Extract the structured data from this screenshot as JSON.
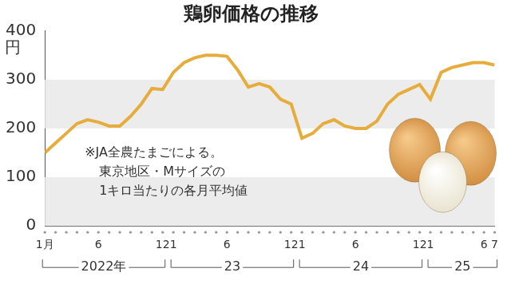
{
  "chart_data": {
    "type": "line",
    "title": "鶏卵価格の推移",
    "y_label": "円",
    "categories": [
      "1月",
      null,
      null,
      null,
      null,
      "6",
      null,
      null,
      null,
      null,
      null,
      "12",
      "1",
      null,
      null,
      null,
      null,
      "6",
      null,
      null,
      null,
      null,
      null,
      "12",
      "1",
      null,
      null,
      null,
      null,
      "6",
      null,
      null,
      null,
      null,
      null,
      "12",
      "1",
      null,
      null,
      null,
      null,
      "6",
      "7"
    ],
    "values": [
      150,
      170,
      190,
      210,
      218,
      213,
      205,
      205,
      225,
      250,
      282,
      280,
      315,
      335,
      345,
      350,
      350,
      348,
      320,
      285,
      292,
      285,
      260,
      250,
      180,
      190,
      210,
      218,
      205,
      200,
      200,
      215,
      250,
      270,
      280,
      290,
      260,
      315,
      325,
      330,
      335,
      335,
      330
    ],
    "color": "#e6ac3c",
    "ylim": [
      0,
      400
    ],
    "yticks": [
      0,
      100,
      200,
      300,
      400
    ],
    "grid": true,
    "annotations": [
      "※JA全農たまごによる。",
      "東京地区・Mサイズの",
      "1キロ当たりの各月平均値"
    ],
    "x_groups": [
      {
        "label": "2022年",
        "start": 0,
        "end": 11
      },
      {
        "label": "23",
        "start": 12,
        "end": 23
      },
      {
        "label": "24",
        "start": 24,
        "end": 35
      },
      {
        "label": "25",
        "start": 36,
        "end": 42
      }
    ]
  }
}
